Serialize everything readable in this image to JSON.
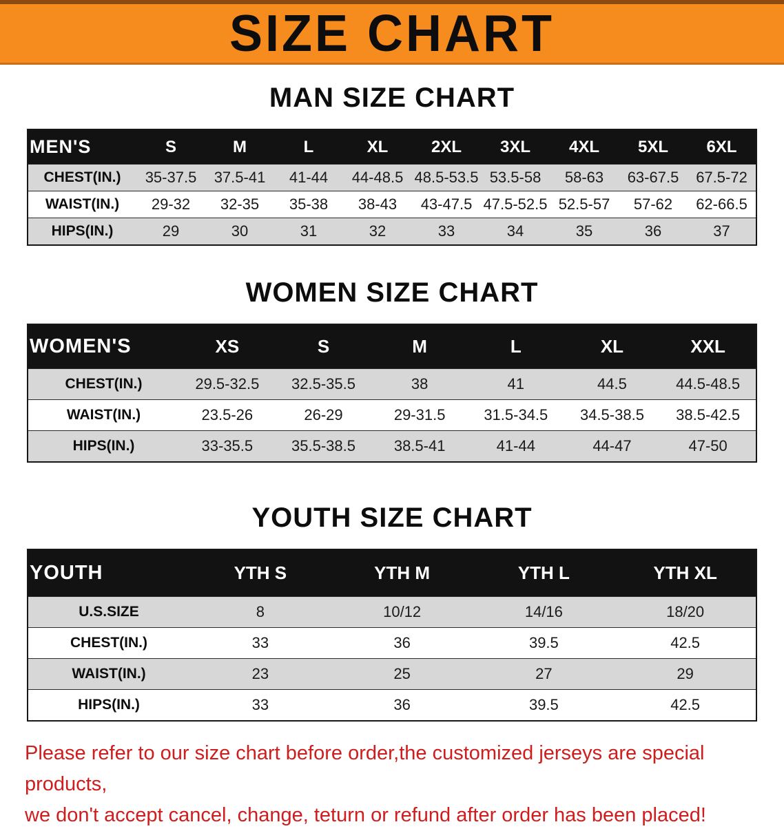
{
  "colors": {
    "banner_bg": "#f68b1e",
    "header_bg": "#121212",
    "stripe": "#d7d7d7",
    "disclaimer": "#cf1d1d"
  },
  "banner": {
    "title": "SIZE CHART"
  },
  "men": {
    "heading": "MAN SIZE CHART",
    "header": [
      "MEN'S",
      "S",
      "M",
      "L",
      "XL",
      "2XL",
      "3XL",
      "4XL",
      "5XL",
      "6XL"
    ],
    "rows": [
      {
        "label": "CHEST(IN.)",
        "values": [
          "35-37.5",
          "37.5-41",
          "41-44",
          "44-48.5",
          "48.5-53.5",
          "53.5-58",
          "58-63",
          "63-67.5",
          "67.5-72"
        ]
      },
      {
        "label": "WAIST(IN.)",
        "values": [
          "29-32",
          "32-35",
          "35-38",
          "38-43",
          "43-47.5",
          "47.5-52.5",
          "52.5-57",
          "57-62",
          "62-66.5"
        ]
      },
      {
        "label": "HIPS(IN.)",
        "values": [
          "29",
          "30",
          "31",
          "32",
          "33",
          "34",
          "35",
          "36",
          "37"
        ]
      }
    ]
  },
  "women": {
    "heading": "WOMEN SIZE CHART",
    "header": [
      "WOMEN'S",
      "XS",
      "S",
      "M",
      "L",
      "XL",
      "XXL"
    ],
    "rows": [
      {
        "label": "CHEST(IN.)",
        "values": [
          "29.5-32.5",
          "32.5-35.5",
          "38",
          "41",
          "44.5",
          "44.5-48.5"
        ]
      },
      {
        "label": "WAIST(IN.)",
        "values": [
          "23.5-26",
          "26-29",
          "29-31.5",
          "31.5-34.5",
          "34.5-38.5",
          "38.5-42.5"
        ]
      },
      {
        "label": "HIPS(IN.)",
        "values": [
          "33-35.5",
          "35.5-38.5",
          "38.5-41",
          "41-44",
          "44-47",
          "47-50"
        ]
      }
    ]
  },
  "youth": {
    "heading": "YOUTH SIZE CHART",
    "header": [
      "YOUTH",
      "YTH S",
      "YTH M",
      "YTH L",
      "YTH XL"
    ],
    "rows": [
      {
        "label": "U.S.SIZE",
        "values": [
          "8",
          "10/12",
          "14/16",
          "18/20"
        ]
      },
      {
        "label": "CHEST(IN.)",
        "values": [
          "33",
          "36",
          "39.5",
          "42.5"
        ]
      },
      {
        "label": "WAIST(IN.)",
        "values": [
          "23",
          "25",
          "27",
          "29"
        ]
      },
      {
        "label": "HIPS(IN.)",
        "values": [
          "33",
          "36",
          "39.5",
          "42.5"
        ]
      }
    ]
  },
  "disclaimer": {
    "line1": "Please refer to our size chart before order,the customized jerseys are special products,",
    "line2": "we don't accept cancel, change, teturn or refund after order has been placed!"
  }
}
